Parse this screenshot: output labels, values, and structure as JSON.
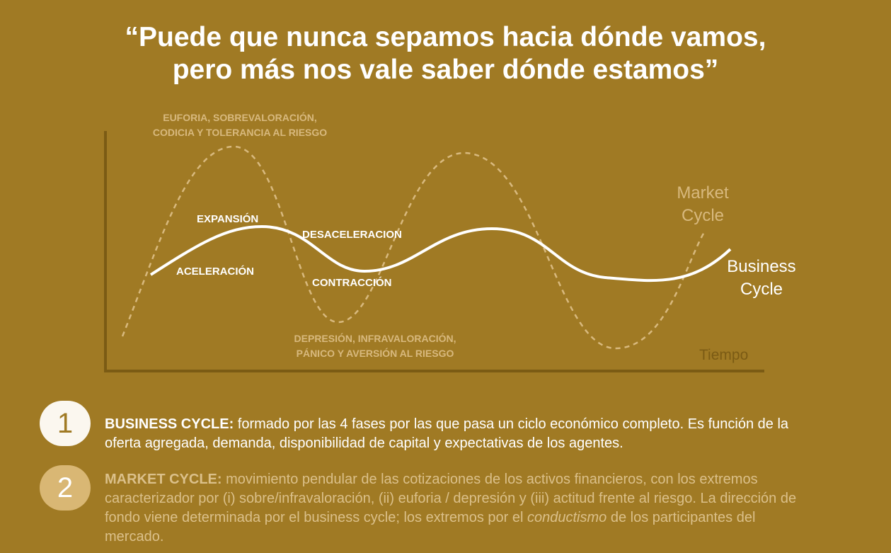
{
  "quote": {
    "line1": "“Puede que nunca sepamos hacia dónde vamos,",
    "line2": "pero más nos vale saber dónde estamos”"
  },
  "diagram": {
    "top_note_line1": "EUFORIA, SOBREVALORACIÓN,",
    "top_note_line2": "CODICIA Y TOLERANCIA AL RIESGO",
    "bottom_note_line1": "DEPRESIÓN, INFRAVALORACIÓN,",
    "bottom_note_line2": "PÁNICO Y AVERSIÓN AL RIESGO",
    "phases": {
      "expansion": "EXPANSIÓN",
      "deceleration": "DESACELERACION",
      "acceleration": "ACELERACIÓN",
      "contraction": "CONTRACCIÓN"
    },
    "market_label_line1": "Market",
    "market_label_line2": "Cycle",
    "business_label_line1": "Business",
    "business_label_line2": "Cycle",
    "x_axis_label": "Tiempo"
  },
  "notes": [
    {
      "number": "1",
      "title": "BUSINESS CYCLE:",
      "text": " formado por las 4 fases por las que pasa un ciclo económico completo. Es función de la oferta agregada, demanda, disponibilidad de capital y expectativas de los agentes."
    },
    {
      "number": "2",
      "title": "MARKET CYCLE:",
      "text_before_em": " movimiento pendular de las cotizaciones de los activos financieros, con los extremos caracterizador por (i) sobre/infravaloración, (ii) euforia / depresión y (iii) actitud frente al riesgo. La dirección de fondo viene determinada por el business cycle; los extremos por el ",
      "emphasis": "conductismo",
      "text_after_em": " de los participantes del mercado."
    }
  ],
  "colors": {
    "background": "#a07a24",
    "axis": "#7b5b14",
    "market_cycle": "#d8b97e",
    "business_cycle": "#ffffff"
  }
}
